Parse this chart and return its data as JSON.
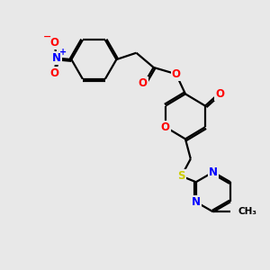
{
  "background_color": "#e8e8e8",
  "bond_color": "#000000",
  "bond_width": 1.6,
  "atom_colors": {
    "O": "#ff0000",
    "N": "#0000ff",
    "S": "#cccc00",
    "C": "#000000"
  },
  "font_size_atom": 8.5
}
